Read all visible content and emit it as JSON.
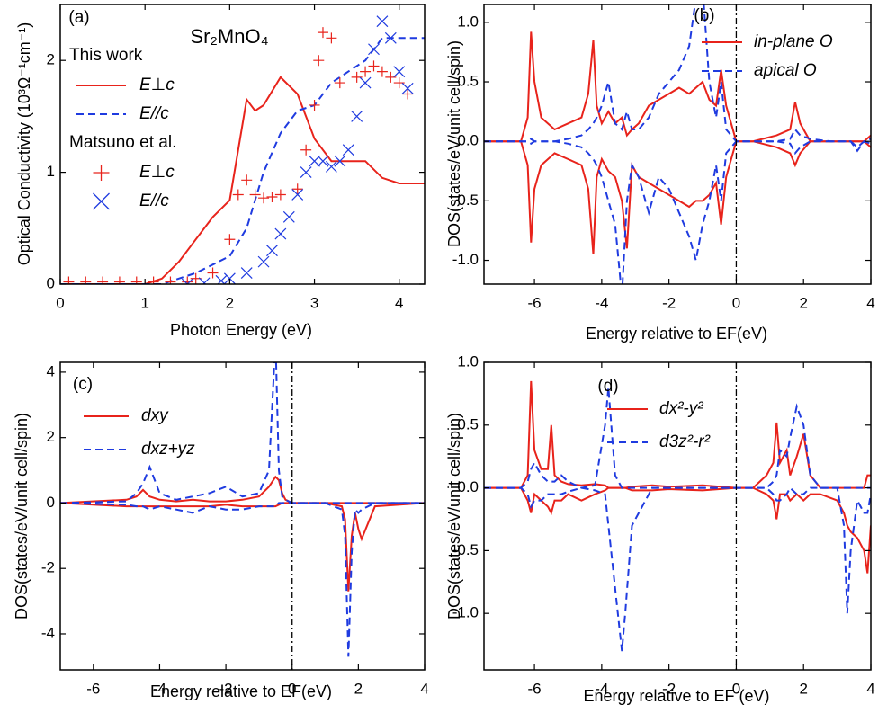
{
  "chart_data": [
    {
      "type": "line",
      "panel_label": "(a)",
      "title": "Sr₂MnO₄",
      "xlabel": "Photon Energy (eV)",
      "ylabel": "Optical Conductivity (10³Ω⁻¹cm⁻¹)",
      "xlim": [
        0,
        4.3
      ],
      "ylim": [
        0,
        2.5
      ],
      "xticks": [
        0,
        1,
        2,
        3,
        4
      ],
      "yticks": [
        0,
        1,
        2
      ],
      "legend_groups": [
        "This work",
        "Matsuno et al."
      ],
      "series": [
        {
          "name": "E⊥c",
          "color": "#e8231b",
          "style": "solid",
          "x": [
            0,
            0.5,
            1.0,
            1.2,
            1.4,
            1.6,
            1.8,
            2.0,
            2.1,
            2.2,
            2.3,
            2.4,
            2.6,
            2.8,
            3.0,
            3.2,
            3.4,
            3.6,
            3.8,
            4.0,
            4.3
          ],
          "values": [
            0,
            0,
            0,
            0.05,
            0.2,
            0.4,
            0.6,
            0.75,
            1.2,
            1.65,
            1.55,
            1.6,
            1.85,
            1.7,
            1.3,
            1.1,
            1.1,
            1.1,
            0.95,
            0.9,
            0.9
          ]
        },
        {
          "name": "E//c",
          "color": "#1f3be0",
          "style": "dashed",
          "x": [
            0,
            0.5,
            1.0,
            1.2,
            1.6,
            2.0,
            2.2,
            2.4,
            2.6,
            2.8,
            3.0,
            3.2,
            3.4,
            3.6,
            3.8,
            4.0,
            4.3
          ],
          "values": [
            0,
            0,
            0,
            0,
            0.1,
            0.25,
            0.5,
            1.0,
            1.35,
            1.55,
            1.6,
            1.8,
            1.9,
            2.0,
            2.2,
            2.2,
            2.2
          ]
        },
        {
          "name": "E⊥c",
          "color": "#e8231b",
          "style": "plus",
          "x": [
            0.1,
            0.3,
            0.5,
            0.7,
            0.9,
            1.1,
            1.3,
            1.5,
            1.6,
            1.8,
            2.0,
            2.1,
            2.2,
            2.3,
            2.4,
            2.5,
            2.6,
            2.8,
            2.9,
            3.0,
            3.05,
            3.1,
            3.2,
            3.3,
            3.5,
            3.6,
            3.7,
            3.8,
            3.9,
            4.0,
            4.1
          ],
          "values": [
            0.02,
            0.02,
            0.02,
            0.02,
            0.02,
            0.02,
            0.02,
            0.02,
            0.05,
            0.1,
            0.4,
            0.8,
            0.93,
            0.8,
            0.77,
            0.78,
            0.8,
            0.85,
            1.2,
            1.6,
            2.0,
            2.25,
            2.2,
            1.8,
            1.85,
            1.9,
            1.95,
            1.9,
            1.85,
            1.8,
            1.7
          ]
        },
        {
          "name": "E//c",
          "color": "#1f3be0",
          "style": "cross",
          "x": [
            1.5,
            1.7,
            1.9,
            2.0,
            2.2,
            2.4,
            2.5,
            2.6,
            2.7,
            2.8,
            2.9,
            3.0,
            3.1,
            3.2,
            3.3,
            3.4,
            3.5,
            3.6,
            3.7,
            3.8,
            3.9,
            4.0,
            4.1
          ],
          "values": [
            0,
            0.01,
            0.03,
            0.05,
            0.1,
            0.2,
            0.3,
            0.45,
            0.6,
            0.8,
            1.0,
            1.1,
            1.1,
            1.05,
            1.1,
            1.2,
            1.5,
            1.8,
            2.1,
            2.35,
            2.2,
            1.9,
            1.75
          ]
        }
      ]
    },
    {
      "type": "line",
      "panel_label": "(b)",
      "xlabel": "Energy relative to EF(eV)",
      "ylabel": "DOS(states/eV/unit cell/spin)",
      "xlim": [
        -7.5,
        4
      ],
      "ylim": [
        -1.2,
        1.15
      ],
      "xticks": [
        -6,
        -4,
        -2,
        0,
        2,
        4
      ],
      "yticks": [
        {
          "value": -1,
          "label": "-1.0"
        },
        -0.5,
        {
          "value": 0,
          "label": "0.0"
        },
        0.5,
        {
          "value": 1,
          "label": "1.0"
        }
      ],
      "vline": 0,
      "x": [
        -7.5,
        -6.4,
        -6.2,
        -6.1,
        -6.0,
        -5.8,
        -5.4,
        -5.0,
        -4.6,
        -4.4,
        -4.25,
        -4.15,
        -4.0,
        -3.8,
        -3.6,
        -3.4,
        -3.25,
        -3.1,
        -2.9,
        -2.6,
        -2.3,
        -2.0,
        -1.7,
        -1.4,
        -1.2,
        -1.0,
        -0.8,
        -0.6,
        -0.45,
        -0.3,
        0,
        0.5,
        1.2,
        1.6,
        1.75,
        1.9,
        2.2,
        2.8,
        3.4,
        3.6,
        3.8,
        4.0
      ],
      "series": [
        {
          "name": "in-plane O",
          "color": "#e8231b",
          "style": "solid",
          "values": [
            0,
            0,
            0.2,
            0.92,
            0.5,
            0.2,
            0.1,
            0.15,
            0.2,
            0.4,
            0.85,
            0.3,
            0.15,
            0.25,
            0.15,
            0.2,
            0.05,
            0.1,
            0.15,
            0.3,
            0.35,
            0.4,
            0.45,
            0.4,
            0.45,
            0.5,
            0.35,
            0.3,
            0.6,
            0.3,
            0,
            0,
            0.05,
            0.1,
            0.33,
            0.15,
            0,
            0,
            0,
            0,
            0,
            0.05
          ],
          "values_down": [
            0,
            0,
            -0.2,
            -0.85,
            -0.4,
            -0.2,
            -0.1,
            -0.15,
            -0.2,
            -0.4,
            -0.95,
            -0.3,
            -0.15,
            -0.25,
            -0.3,
            -0.5,
            -0.9,
            -0.2,
            -0.3,
            -0.35,
            -0.4,
            -0.45,
            -0.5,
            -0.55,
            -0.5,
            -0.5,
            -0.45,
            -0.35,
            -0.7,
            -0.3,
            0,
            0,
            -0.05,
            -0.1,
            -0.2,
            -0.1,
            0,
            0,
            0,
            0,
            0,
            -0.05
          ]
        },
        {
          "name": "apical O",
          "color": "#1f3be0",
          "style": "dashed",
          "values": [
            0,
            0,
            0,
            0.02,
            0,
            0,
            0,
            0.02,
            0.05,
            0.1,
            0.15,
            0.2,
            0.3,
            0.5,
            0.15,
            0.1,
            0.25,
            0.1,
            0.1,
            0.2,
            0.4,
            0.5,
            0.6,
            0.8,
            1.2,
            1.3,
            0.5,
            0.2,
            0.5,
            0.1,
            0,
            0,
            0,
            0.02,
            0.1,
            0.05,
            0.02,
            0,
            0,
            -0.05,
            0,
            0.02
          ],
          "values_down": [
            0,
            0,
            0,
            -0.02,
            0,
            0,
            0,
            -0.02,
            -0.05,
            -0.1,
            -0.15,
            -0.2,
            -0.3,
            -0.5,
            -0.7,
            -1.3,
            -0.5,
            -0.2,
            -0.3,
            -0.6,
            -0.3,
            -0.4,
            -0.6,
            -0.8,
            -1.0,
            -0.7,
            -0.5,
            -0.2,
            -0.5,
            -0.1,
            0,
            0,
            0,
            -0.02,
            -0.1,
            -0.05,
            0,
            0,
            0,
            -0.08,
            0,
            -0.02
          ]
        }
      ]
    },
    {
      "type": "line",
      "panel_label": "(c)",
      "xlabel": "Energy relative to EF(eV)",
      "ylabel": "DOS(states/eV/unit cell/spin)",
      "xlim": [
        -7,
        4
      ],
      "ylim": [
        -5.1,
        4.3
      ],
      "xticks": [
        -6,
        -4,
        -2,
        0,
        2,
        4
      ],
      "yticks": [
        -4,
        -2,
        0,
        2,
        4
      ],
      "vline": 0,
      "x": [
        -7,
        -5,
        -4.7,
        -4.5,
        -4.3,
        -4.0,
        -3.5,
        -3.0,
        -2.5,
        -2.0,
        -1.5,
        -1.0,
        -0.7,
        -0.5,
        -0.4,
        -0.3,
        -0.2,
        0,
        1.0,
        1.5,
        1.6,
        1.7,
        1.8,
        1.9,
        2.0,
        2.1,
        2.5,
        4
      ],
      "series": [
        {
          "name": "dxy",
          "color": "#e8231b",
          "style": "solid",
          "values": [
            0,
            0.1,
            0.2,
            0.4,
            0.2,
            0.1,
            0.05,
            0.1,
            0.05,
            0.05,
            0.1,
            0.2,
            0.5,
            0.8,
            0.7,
            0.3,
            0.1,
            0,
            0,
            0,
            0,
            0,
            0,
            0,
            0,
            0,
            0,
            0
          ],
          "values_down": [
            0,
            -0.1,
            -0.1,
            -0.1,
            -0.1,
            -0.1,
            -0.1,
            -0.1,
            -0.1,
            -0.05,
            -0.1,
            -0.1,
            -0.1,
            -0.1,
            -0.05,
            0,
            0,
            0,
            0,
            -0.1,
            -0.5,
            -2.7,
            -1.0,
            -0.3,
            -0.8,
            -1.1,
            -0.1,
            0
          ]
        },
        {
          "name": "dxz+yz",
          "color": "#1f3be0",
          "style": "dashed",
          "values": [
            0,
            0.05,
            0.3,
            0.6,
            1.1,
            0.3,
            0.1,
            0.2,
            0.3,
            0.5,
            0.2,
            0.3,
            1.0,
            5.0,
            1.0,
            0.2,
            0.1,
            0,
            0,
            0,
            0,
            0,
            0,
            0,
            0,
            0,
            0,
            0
          ],
          "values_down": [
            0,
            -0.05,
            -0.1,
            -0.1,
            -0.2,
            -0.1,
            -0.2,
            -0.3,
            -0.1,
            -0.2,
            -0.2,
            -0.1,
            -0.1,
            -0.1,
            0,
            0,
            0,
            0,
            0,
            -0.2,
            -1.0,
            -4.7,
            -1.5,
            -0.2,
            -0.3,
            -0.2,
            0,
            0
          ]
        }
      ]
    },
    {
      "type": "line",
      "panel_label": "(d)",
      "xlabel": "Energy relative to EF (eV)",
      "ylabel": "DOS(states/eV/unit cell/spin)",
      "xlim": [
        -7.5,
        4
      ],
      "ylim": [
        -1.45,
        1.0
      ],
      "xticks": [
        -6,
        -4,
        -2,
        0,
        2,
        4
      ],
      "yticks": [
        {
          "value": -1,
          "label": "-1.0"
        },
        -0.5,
        {
          "value": 0,
          "label": "0.0"
        },
        0.5,
        {
          "value": 1,
          "label": "1.0"
        }
      ],
      "vline": 0,
      "x": [
        -7.5,
        -6.4,
        -6.2,
        -6.1,
        -6.0,
        -5.8,
        -5.6,
        -5.5,
        -5.4,
        -5.2,
        -5.0,
        -4.6,
        -4.2,
        -3.9,
        -3.8,
        -3.6,
        -3.4,
        -3.3,
        -3.1,
        -2.5,
        -2.0,
        -1.0,
        0,
        0.5,
        0.9,
        1.1,
        1.2,
        1.3,
        1.5,
        1.6,
        1.8,
        2.0,
        2.2,
        2.5,
        3.0,
        3.2,
        3.3,
        3.4,
        3.6,
        3.8,
        3.9,
        4.0
      ],
      "series": [
        {
          "name": "dx²-y²",
          "color": "#e8231b",
          "style": "solid",
          "values": [
            0,
            0,
            0.1,
            0.85,
            0.3,
            0.15,
            0.15,
            0.5,
            0.1,
            0.05,
            0.03,
            0.02,
            0.03,
            0.02,
            0,
            0,
            0,
            0,
            0.01,
            0.02,
            0.01,
            0.02,
            0,
            0,
            0.1,
            0.2,
            0.52,
            0.2,
            0.3,
            0.1,
            0.25,
            0.43,
            0.1,
            0,
            0,
            0,
            0,
            0,
            0,
            0,
            0.1,
            0.1
          ],
          "values_down": [
            0,
            0,
            -0.1,
            -0.2,
            -0.05,
            -0.1,
            -0.15,
            -0.2,
            -0.1,
            -0.1,
            -0.05,
            -0.1,
            -0.05,
            -0.02,
            0,
            0,
            0,
            0,
            -0.02,
            -0.02,
            -0.01,
            -0.02,
            0,
            0,
            -0.05,
            -0.1,
            -0.25,
            -0.05,
            -0.05,
            -0.1,
            -0.05,
            -0.1,
            -0.05,
            -0.05,
            -0.1,
            -0.2,
            -0.3,
            -0.35,
            -0.4,
            -0.5,
            -0.68,
            -0.3
          ]
        },
        {
          "name": "d3z²-r²",
          "color": "#1f3be0",
          "style": "dashed",
          "values": [
            0,
            0,
            0.05,
            0.15,
            0.2,
            0.1,
            0.05,
            0.05,
            0.05,
            0.1,
            0.05,
            0,
            0.02,
            0.5,
            0.8,
            0.1,
            0,
            0,
            0,
            0,
            0,
            0,
            0,
            0,
            0,
            0.05,
            0.1,
            0.3,
            0.25,
            0.4,
            0.65,
            0.5,
            0.1,
            0,
            0,
            0,
            0,
            0,
            0,
            0,
            0,
            0
          ],
          "values_down": [
            0,
            0,
            -0.05,
            -0.15,
            -0.1,
            -0.1,
            -0.05,
            -0.05,
            -0.05,
            -0.05,
            -0.03,
            0,
            -0.02,
            -0.05,
            -0.3,
            -0.8,
            -1.3,
            -1.0,
            -0.3,
            0,
            0,
            0,
            0,
            0,
            0,
            -0.05,
            -0.1,
            -0.1,
            -0.05,
            0,
            -0.05,
            -0.05,
            0,
            0,
            0,
            -0.3,
            -1.0,
            -0.5,
            -0.1,
            -0.2,
            -0.2,
            -0.05
          ]
        }
      ]
    }
  ]
}
